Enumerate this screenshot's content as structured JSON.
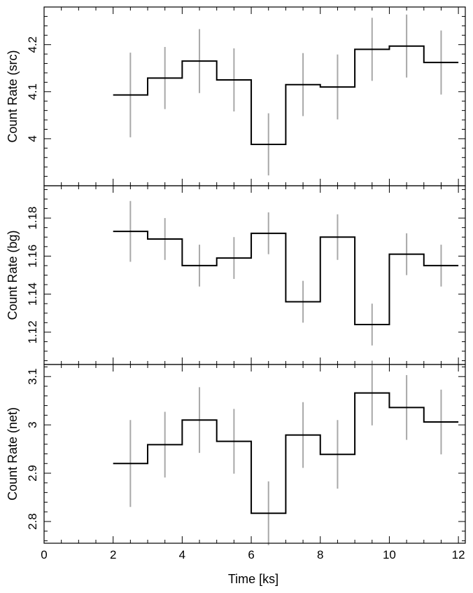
{
  "chart_data": [
    {
      "type": "line",
      "ylabel": "Count Rate (src)",
      "xlim": [
        0,
        12.2
      ],
      "ylim": [
        3.9,
        4.28
      ],
      "yticks_major": [
        4,
        4.1,
        4.2
      ],
      "ytick_labels": [
        "4",
        "4.1",
        "4.2"
      ],
      "yminor_step": 0.02,
      "bins": [
        [
          2,
          3
        ],
        [
          3,
          4
        ],
        [
          4,
          5
        ],
        [
          5,
          6
        ],
        [
          6,
          7
        ],
        [
          7,
          8
        ],
        [
          8,
          9
        ],
        [
          9,
          10
        ],
        [
          10,
          11
        ],
        [
          11,
          12
        ]
      ],
      "x": [
        2.5,
        3.5,
        4.5,
        5.5,
        6.5,
        7.5,
        8.5,
        9.5,
        10.5,
        11.5
      ],
      "values": [
        4.093,
        4.129,
        4.165,
        4.125,
        3.988,
        4.115,
        4.11,
        4.19,
        4.197,
        4.162
      ],
      "err": [
        0.09,
        0.066,
        0.068,
        0.067,
        0.066,
        0.067,
        0.069,
        0.067,
        0.067,
        0.068
      ]
    },
    {
      "type": "line",
      "ylabel": "Count Rate (bg)",
      "xlim": [
        0,
        12.2
      ],
      "ylim": [
        1.103,
        1.197
      ],
      "yticks_major": [
        1.12,
        1.14,
        1.16,
        1.18
      ],
      "ytick_labels": [
        "1.12",
        "1.14",
        "1.16",
        "1.18"
      ],
      "yminor_step": 0.005,
      "bins": [
        [
          2,
          3
        ],
        [
          3,
          4
        ],
        [
          4,
          5
        ],
        [
          5,
          6
        ],
        [
          6,
          7
        ],
        [
          7,
          8
        ],
        [
          8,
          9
        ],
        [
          9,
          10
        ],
        [
          10,
          11
        ],
        [
          11,
          12
        ]
      ],
      "x": [
        2.5,
        3.5,
        4.5,
        5.5,
        6.5,
        7.5,
        8.5,
        9.5,
        10.5,
        11.5
      ],
      "values": [
        1.173,
        1.169,
        1.155,
        1.159,
        1.172,
        1.136,
        1.17,
        1.124,
        1.161,
        1.155
      ],
      "err": [
        0.016,
        0.011,
        0.011,
        0.011,
        0.011,
        0.011,
        0.012,
        0.011,
        0.011,
        0.011
      ]
    },
    {
      "type": "line",
      "ylabel": "Count Rate (net)",
      "xlabel": "Time [ks]",
      "xlim": [
        0,
        12.2
      ],
      "ylim": [
        2.755,
        3.125
      ],
      "xticks_major": [
        0,
        2,
        4,
        6,
        8,
        10,
        12
      ],
      "xtick_labels": [
        "0",
        "2",
        "4",
        "6",
        "8",
        "10",
        "12"
      ],
      "yticks_major": [
        2.8,
        2.9,
        3,
        3.1
      ],
      "ytick_labels": [
        "2.8",
        "2.9",
        "3",
        "3.1"
      ],
      "yminor_step": 0.02,
      "bins": [
        [
          2,
          3
        ],
        [
          3,
          4
        ],
        [
          4,
          5
        ],
        [
          5,
          6
        ],
        [
          6,
          7
        ],
        [
          7,
          8
        ],
        [
          8,
          9
        ],
        [
          9,
          10
        ],
        [
          10,
          11
        ],
        [
          11,
          12
        ]
      ],
      "x": [
        2.5,
        3.5,
        4.5,
        5.5,
        6.5,
        7.5,
        8.5,
        9.5,
        10.5,
        11.5
      ],
      "values": [
        2.92,
        2.959,
        3.01,
        2.966,
        2.817,
        2.979,
        2.939,
        3.066,
        3.036,
        3.006
      ],
      "err": [
        0.09,
        0.068,
        0.068,
        0.067,
        0.066,
        0.068,
        0.071,
        0.067,
        0.067,
        0.067
      ]
    }
  ]
}
